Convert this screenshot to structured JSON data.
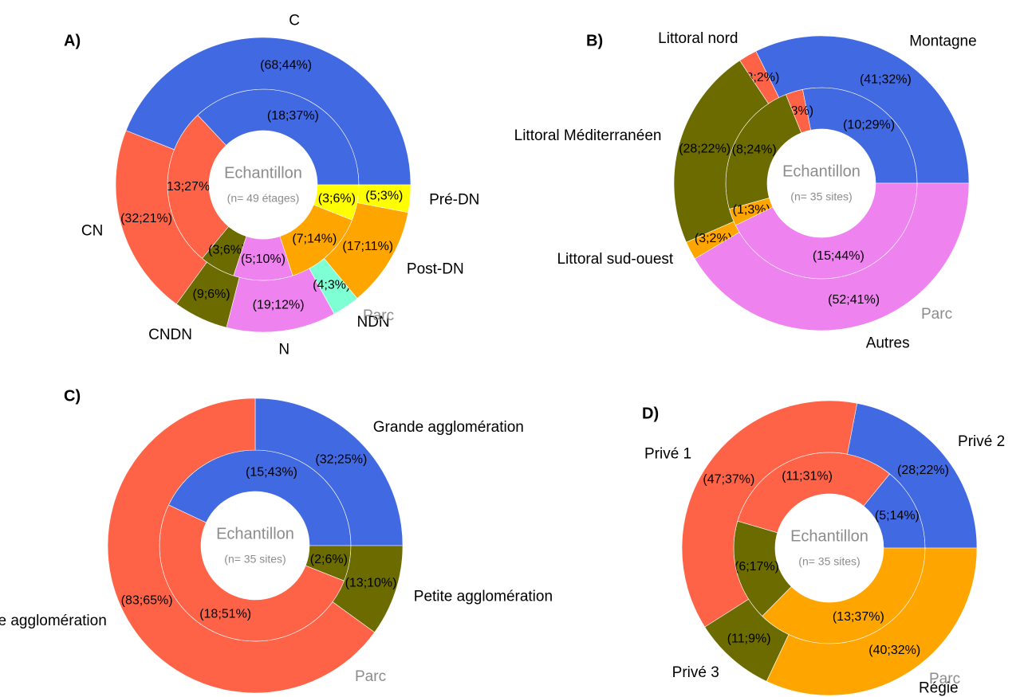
{
  "chart_data": [
    {
      "type": "donut",
      "panel": "A)",
      "center_label": "Echantillon",
      "sample_note": "(n= 49 étages)",
      "categories": [
        "C",
        "CN",
        "CNDN",
        "N",
        "NDN",
        "Post-DN",
        "Pré-DN"
      ],
      "colors": [
        "#4169e1",
        "#ff6347",
        "#6b6b00",
        "#ee82ee",
        "#7fffd4",
        "#ffa500",
        "#ffff00"
      ],
      "series": [
        {
          "name": "Echantillon",
          "values": [
            37,
            27,
            6,
            10,
            null,
            14,
            6
          ],
          "value_labels": [
            "(18;37%)",
            "(13;27%)",
            "(3;6%)",
            "(5;10%)",
            null,
            "(7;14%)",
            "(3;6%)"
          ]
        },
        {
          "name": "Parc",
          "values": [
            44,
            21,
            6,
            12,
            3,
            11,
            3
          ],
          "value_labels": [
            "(68;44%)",
            "(32;21%)",
            "(9;6%)",
            "(19;12%)",
            "(4;3%)",
            "(17;11%)",
            "(5;3%)"
          ]
        }
      ]
    },
    {
      "type": "donut",
      "panel": "B)",
      "center_label": "Echantillon",
      "sample_note": "(n= 35 sites)",
      "categories": [
        "Montagne",
        "Littoral nord",
        "Littoral Méditerranéen",
        "Littoral sud-ouest",
        "Autres"
      ],
      "colors": [
        "#4169e1",
        "#ff6347",
        "#6b6b00",
        "#ffa500",
        "#ee82ee"
      ],
      "series": [
        {
          "name": "Echantillon",
          "values": [
            29,
            3,
            24,
            3,
            44
          ],
          "value_labels": [
            "(10;29%)",
            "(3%)",
            "(8;24%)",
            "(1;3%)",
            "(15;44%)"
          ]
        },
        {
          "name": "Parc",
          "values": [
            32,
            2,
            22,
            2,
            41
          ],
          "value_labels": [
            "(41;32%)",
            "(3;2%)",
            "(28;22%)",
            "(3;2%)",
            "(52;41%)"
          ]
        }
      ]
    },
    {
      "type": "donut",
      "panel": "C)",
      "center_label": "Echantillon",
      "sample_note": "(n= 35 sites)",
      "categories": [
        "Grande agglomération",
        "Moyenne agglomération",
        "Petite agglomération"
      ],
      "colors": [
        "#4169e1",
        "#ff6347",
        "#6b6b00"
      ],
      "series": [
        {
          "name": "Echantillon",
          "values": [
            43,
            51,
            6
          ],
          "value_labels": [
            "(15;43%)",
            "(18;51%)",
            "(2;6%)"
          ]
        },
        {
          "name": "Parc",
          "values": [
            25,
            65,
            10
          ],
          "value_labels": [
            "(32;25%)",
            "(83;65%)",
            "(13;10%)"
          ]
        }
      ]
    },
    {
      "type": "donut",
      "panel": "D)",
      "center_label": "Echantillon",
      "sample_note": "(n= 35 sites)",
      "categories": [
        "Privé 2",
        "Privé 1",
        "Privé 3",
        "Régie"
      ],
      "colors": [
        "#4169e1",
        "#ff6347",
        "#6b6b00",
        "#ffa500"
      ],
      "series": [
        {
          "name": "Echantillon",
          "values": [
            14,
            31,
            17,
            37
          ],
          "value_labels": [
            "(5;14%)",
            "(11;31%)",
            "(6;17%)",
            "(13;37%)"
          ]
        },
        {
          "name": "Parc",
          "values": [
            22,
            37,
            9,
            32
          ],
          "value_labels": [
            "(28;22%)",
            "(47;37%)",
            "(11;9%)",
            "(40;32%)"
          ]
        }
      ]
    }
  ]
}
